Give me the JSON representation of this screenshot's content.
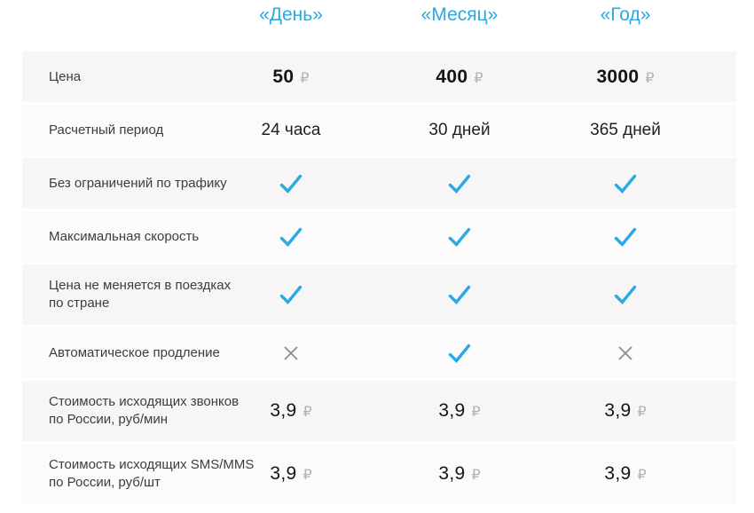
{
  "table": {
    "currency": "₽",
    "columns": [
      {
        "id": "day",
        "label": "«День»"
      },
      {
        "id": "month",
        "label": "«Месяц»"
      },
      {
        "id": "year",
        "label": "«Год»"
      }
    ],
    "rows": [
      {
        "label": "Цена",
        "cells": [
          {
            "type": "price",
            "value": "50"
          },
          {
            "type": "price",
            "value": "400"
          },
          {
            "type": "price",
            "value": "3000"
          }
        ]
      },
      {
        "label": "Расчетный период",
        "cells": [
          {
            "type": "text",
            "value": "24 часа"
          },
          {
            "type": "text",
            "value": "30 дней"
          },
          {
            "type": "text",
            "value": "365 дней"
          }
        ]
      },
      {
        "label": "Без ограничений по трафику",
        "cells": [
          {
            "type": "check"
          },
          {
            "type": "check"
          },
          {
            "type": "check"
          }
        ]
      },
      {
        "label": "Максимальная скорость",
        "cells": [
          {
            "type": "check"
          },
          {
            "type": "check"
          },
          {
            "type": "check"
          }
        ]
      },
      {
        "label": "Цена не меняется в поездках\nпо стране",
        "cells": [
          {
            "type": "check"
          },
          {
            "type": "check"
          },
          {
            "type": "check"
          }
        ]
      },
      {
        "label": "Автоматическое продление",
        "cells": [
          {
            "type": "cross"
          },
          {
            "type": "check"
          },
          {
            "type": "cross"
          }
        ]
      },
      {
        "label": "Стоимость исходящих звонков\nпо России, руб/мин",
        "cells": [
          {
            "type": "price",
            "value": "3,9"
          },
          {
            "type": "price",
            "value": "3,9"
          },
          {
            "type": "price",
            "value": "3,9"
          }
        ]
      },
      {
        "label": "Стоимость исходящих SMS/MMS\nпо России, руб/шт",
        "cells": [
          {
            "type": "price",
            "value": "3,9"
          },
          {
            "type": "price",
            "value": "3,9"
          },
          {
            "type": "price",
            "value": "3,9"
          }
        ]
      }
    ],
    "colors": {
      "accent_blue": "#2BA9E0",
      "cross_gray": "#8C8C8C",
      "row_odd_bg": "#F6F6F6",
      "row_even_bg": "#FBFBFB",
      "label_text": "#3D3D3D",
      "value_text": "#1F1F1F",
      "currency_text": "#B3B3B3"
    }
  }
}
